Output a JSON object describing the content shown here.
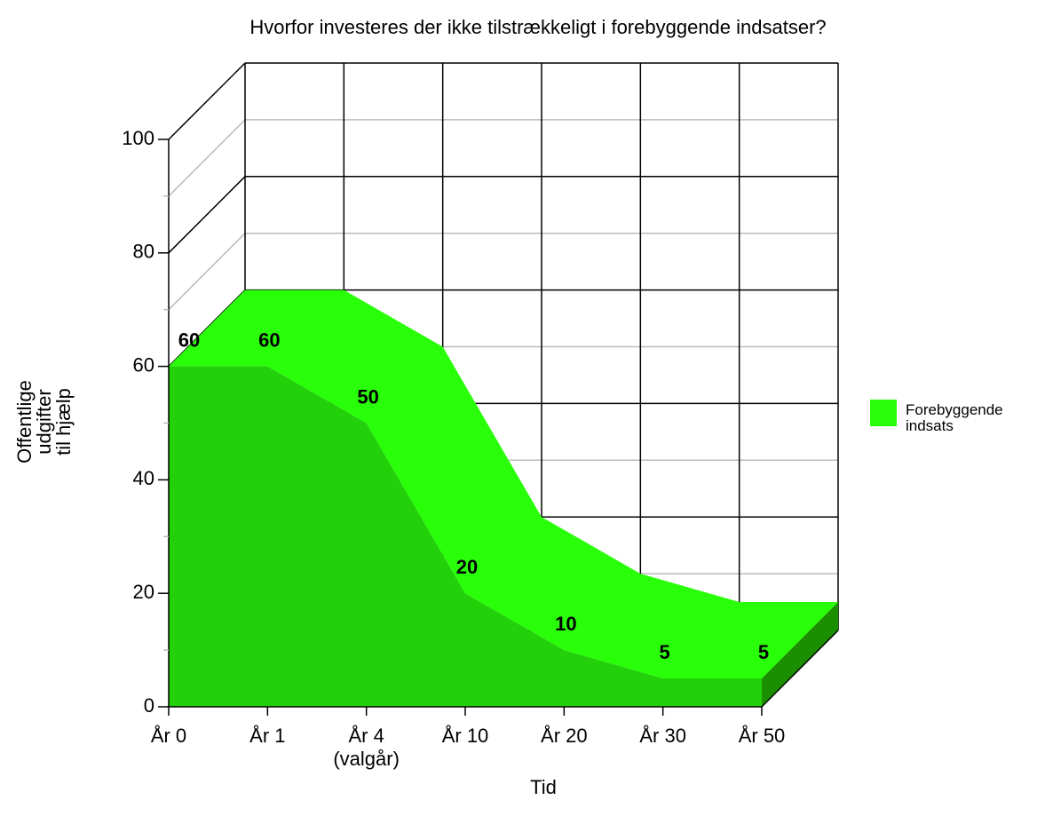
{
  "chart_data": {
    "type": "area3d",
    "title": "Hvorfor investeres der ikke tilstrækkeligt i forebyggende indsatser?",
    "x_label": "Tid",
    "y_label": "Offentlige\nudgifter\ntil hjælp",
    "categories": [
      "År 0",
      "År 1",
      "År 4\n(valgår)",
      "År 10",
      "År 20",
      "År 30",
      "År 50"
    ],
    "series": [
      {
        "name": "Forebyggende\nindsats",
        "color": "#22d10a",
        "values": [
          60,
          60,
          50,
          20,
          10,
          5,
          5
        ]
      }
    ],
    "ylim": [
      0,
      100
    ],
    "yticks": [
      0,
      20,
      40,
      60,
      80,
      100
    ],
    "grid": true,
    "legend": "right"
  }
}
